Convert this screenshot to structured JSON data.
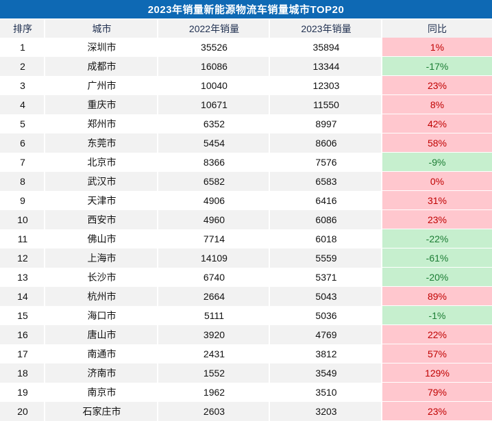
{
  "title": "2023年销量新能源物流车销量城市TOP20",
  "chart_data": {
    "type": "table",
    "title": "2023年销量新能源物流车销量城市TOP20",
    "columns": [
      "排序",
      "城市",
      "2022年销量",
      "2023年销量",
      "同比"
    ],
    "rows": [
      {
        "rank": 1,
        "city": "深圳市",
        "sales_2022": 35526,
        "sales_2023": 35894,
        "yoy": "1%",
        "trend": "up"
      },
      {
        "rank": 2,
        "city": "成都市",
        "sales_2022": 16086,
        "sales_2023": 13344,
        "yoy": "-17%",
        "trend": "down"
      },
      {
        "rank": 3,
        "city": "广州市",
        "sales_2022": 10040,
        "sales_2023": 12303,
        "yoy": "23%",
        "trend": "up"
      },
      {
        "rank": 4,
        "city": "重庆市",
        "sales_2022": 10671,
        "sales_2023": 11550,
        "yoy": "8%",
        "trend": "up"
      },
      {
        "rank": 5,
        "city": "郑州市",
        "sales_2022": 6352,
        "sales_2023": 8997,
        "yoy": "42%",
        "trend": "up"
      },
      {
        "rank": 6,
        "city": "东莞市",
        "sales_2022": 5454,
        "sales_2023": 8606,
        "yoy": "58%",
        "trend": "up"
      },
      {
        "rank": 7,
        "city": "北京市",
        "sales_2022": 8366,
        "sales_2023": 7576,
        "yoy": "-9%",
        "trend": "down"
      },
      {
        "rank": 8,
        "city": "武汉市",
        "sales_2022": 6582,
        "sales_2023": 6583,
        "yoy": "0%",
        "trend": "up"
      },
      {
        "rank": 9,
        "city": "天津市",
        "sales_2022": 4906,
        "sales_2023": 6416,
        "yoy": "31%",
        "trend": "up"
      },
      {
        "rank": 10,
        "city": "西安市",
        "sales_2022": 4960,
        "sales_2023": 6086,
        "yoy": "23%",
        "trend": "up"
      },
      {
        "rank": 11,
        "city": "佛山市",
        "sales_2022": 7714,
        "sales_2023": 6018,
        "yoy": "-22%",
        "trend": "down"
      },
      {
        "rank": 12,
        "city": "上海市",
        "sales_2022": 14109,
        "sales_2023": 5559,
        "yoy": "-61%",
        "trend": "down"
      },
      {
        "rank": 13,
        "city": "长沙市",
        "sales_2022": 6740,
        "sales_2023": 5371,
        "yoy": "-20%",
        "trend": "down"
      },
      {
        "rank": 14,
        "city": "杭州市",
        "sales_2022": 2664,
        "sales_2023": 5043,
        "yoy": "89%",
        "trend": "up"
      },
      {
        "rank": 15,
        "city": "海口市",
        "sales_2022": 5111,
        "sales_2023": 5036,
        "yoy": "-1%",
        "trend": "down"
      },
      {
        "rank": 16,
        "city": "唐山市",
        "sales_2022": 3920,
        "sales_2023": 4769,
        "yoy": "22%",
        "trend": "up"
      },
      {
        "rank": 17,
        "city": "南通市",
        "sales_2022": 2431,
        "sales_2023": 3812,
        "yoy": "57%",
        "trend": "up"
      },
      {
        "rank": 18,
        "city": "济南市",
        "sales_2022": 1552,
        "sales_2023": 3549,
        "yoy": "129%",
        "trend": "up"
      },
      {
        "rank": 19,
        "city": "南京市",
        "sales_2022": 1962,
        "sales_2023": 3510,
        "yoy": "79%",
        "trend": "up"
      },
      {
        "rank": 20,
        "city": "石家庄市",
        "sales_2022": 2603,
        "sales_2023": 3203,
        "yoy": "23%",
        "trend": "up"
      }
    ]
  },
  "colors": {
    "title_bg": "#0E69B4",
    "title_text": "#FFFFFF",
    "header_bg": "#F2F2F2",
    "header_text": "#203050",
    "row_alt_bg": "#F2F2F2",
    "yoy_up_bg": "#FFC7CE",
    "yoy_up_text": "#C00000",
    "yoy_down_bg": "#C6EFCE",
    "yoy_down_text": "#1B7C33"
  }
}
